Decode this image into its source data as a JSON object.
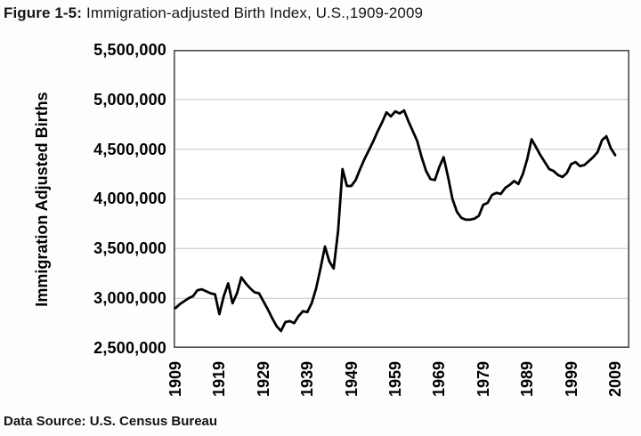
{
  "header": {
    "figure_label": "Figure 1-5:",
    "title": "Immigration-adjusted Birth Index, U.S.,1909-2009"
  },
  "footer": {
    "source": "Data Source: U.S. Census Bureau"
  },
  "chart_data": {
    "type": "line",
    "title": "Figure 1-5: Immigration-adjusted Birth Index, U.S.,1909-2009",
    "xlabel": "",
    "ylabel": "Immigration Adjusted Births",
    "ylim": [
      2500000,
      5500000
    ],
    "y_tick_interval": 500000,
    "y_tick_labels": [
      "5,500,000",
      "5,000,000",
      "4,500,000",
      "4,000,000",
      "3,500,000",
      "3,000,000",
      "2,500,000"
    ],
    "x_tick_labels": [
      "1909",
      "1919",
      "1929",
      "1939",
      "1949",
      "1959",
      "1969",
      "1979",
      "1989",
      "1999",
      "2009"
    ],
    "grid": "horizontal",
    "legend": "none",
    "line_color": "#000000",
    "x": [
      1909,
      1910,
      1911,
      1912,
      1913,
      1914,
      1915,
      1916,
      1917,
      1918,
      1919,
      1920,
      1921,
      1922,
      1923,
      1924,
      1925,
      1926,
      1927,
      1928,
      1929,
      1930,
      1931,
      1932,
      1933,
      1934,
      1935,
      1936,
      1937,
      1938,
      1939,
      1940,
      1941,
      1942,
      1943,
      1944,
      1945,
      1946,
      1947,
      1948,
      1949,
      1950,
      1951,
      1952,
      1953,
      1954,
      1955,
      1956,
      1957,
      1958,
      1959,
      1960,
      1961,
      1962,
      1963,
      1964,
      1965,
      1966,
      1967,
      1968,
      1969,
      1970,
      1971,
      1972,
      1973,
      1974,
      1975,
      1976,
      1977,
      1978,
      1979,
      1980,
      1981,
      1982,
      1983,
      1984,
      1985,
      1986,
      1987,
      1988,
      1989,
      1990,
      1991,
      1992,
      1993,
      1994,
      1995,
      1996,
      1997,
      1998,
      1999,
      2000,
      2001,
      2002,
      2003,
      2004,
      2005,
      2006,
      2007,
      2008,
      2009
    ],
    "values": [
      2900000,
      2940000,
      2970000,
      3000000,
      3020000,
      3080000,
      3090000,
      3070000,
      3050000,
      3040000,
      2840000,
      3020000,
      3150000,
      2950000,
      3050000,
      3210000,
      3150000,
      3100000,
      3060000,
      3050000,
      2970000,
      2890000,
      2800000,
      2720000,
      2670000,
      2760000,
      2770000,
      2750000,
      2820000,
      2870000,
      2860000,
      2950000,
      3100000,
      3300000,
      3520000,
      3370000,
      3300000,
      3680000,
      4300000,
      4130000,
      4130000,
      4190000,
      4300000,
      4400000,
      4490000,
      4580000,
      4680000,
      4770000,
      4870000,
      4830000,
      4880000,
      4860000,
      4890000,
      4780000,
      4680000,
      4580000,
      4420000,
      4280000,
      4200000,
      4190000,
      4320000,
      4420000,
      4220000,
      4000000,
      3870000,
      3810000,
      3790000,
      3790000,
      3800000,
      3830000,
      3940000,
      3960000,
      4040000,
      4060000,
      4050000,
      4110000,
      4140000,
      4180000,
      4150000,
      4250000,
      4400000,
      4600000,
      4520000,
      4440000,
      4370000,
      4300000,
      4280000,
      4240000,
      4220000,
      4260000,
      4350000,
      4370000,
      4330000,
      4340000,
      4380000,
      4420000,
      4470000,
      4590000,
      4630000,
      4510000,
      4440000
    ]
  }
}
